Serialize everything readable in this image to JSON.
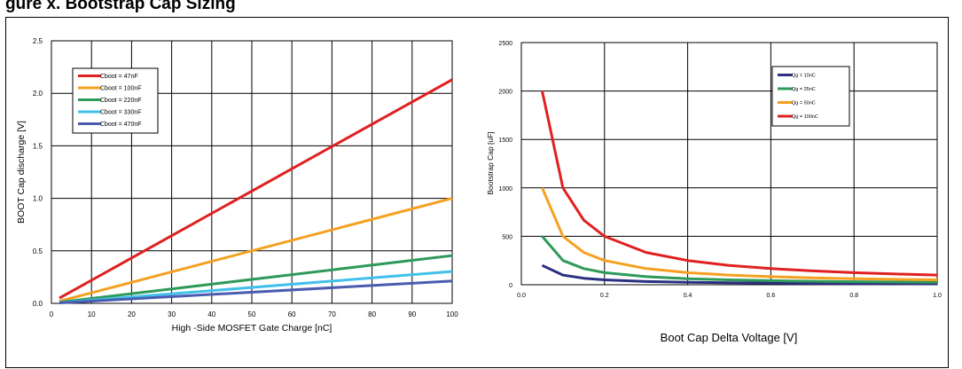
{
  "page": {
    "heading": "gure x. Bootstrap Cap Sizing"
  },
  "chart_data": [
    {
      "type": "line",
      "xlabel": "High -Side MOSFET Gate Charge [nC]",
      "ylabel": "BOOT Cap discharge [V]",
      "xlim": [
        0,
        100
      ],
      "ylim": [
        0,
        2.5
      ],
      "xticks": [
        0,
        10,
        20,
        30,
        40,
        50,
        60,
        70,
        80,
        90,
        100
      ],
      "yticks": [
        0.0,
        0.5,
        1.0,
        1.5,
        2.0,
        2.5
      ],
      "ytick_labels": [
        "0.0",
        "0.5",
        "1.0",
        "1.5",
        "2.0",
        "2.5"
      ],
      "grid": true,
      "legend_position": "top-left",
      "series": [
        {
          "name": "Cboot = 47nF",
          "color": "#e02020",
          "x": [
            2,
            100
          ],
          "y": [
            0.05,
            2.13
          ]
        },
        {
          "name": "Cboot = 100nF",
          "color": "#f5a020",
          "x": [
            2,
            100
          ],
          "y": [
            0.02,
            1.0
          ]
        },
        {
          "name": "Cboot = 220nF",
          "color": "#2e9a5a",
          "x": [
            2,
            100
          ],
          "y": [
            0.01,
            0.455
          ]
        },
        {
          "name": "Cboot = 330nF",
          "color": "#40c0ea",
          "x": [
            2,
            100
          ],
          "y": [
            0.006,
            0.303
          ]
        },
        {
          "name": "Cboot = 470nF",
          "color": "#4a5cb0",
          "x": [
            2,
            100
          ],
          "y": [
            0.004,
            0.213
          ]
        }
      ]
    },
    {
      "type": "line",
      "xlabel": "Boot Cap Delta Voltage [V]",
      "ylabel": "Bootstrap Cap [uF]",
      "xlim": [
        0,
        1.0
      ],
      "ylim": [
        0,
        2500
      ],
      "xticks": [
        0.0,
        0.2,
        0.4,
        0.6,
        0.8,
        1.0
      ],
      "xtick_labels": [
        "0.0",
        "0.2",
        "0.4",
        "0.6",
        "0.8",
        "1.0"
      ],
      "yticks": [
        0,
        500,
        1000,
        1500,
        2000,
        2500
      ],
      "grid": true,
      "legend_position": "top-right",
      "series": [
        {
          "name": "Qg = 10nC",
          "color": "#2a2f80",
          "x": [
            0.05,
            0.1,
            0.15,
            0.2,
            0.3,
            0.4,
            0.5,
            0.6,
            0.7,
            0.8,
            0.9,
            1.0
          ],
          "y": [
            200,
            100,
            67,
            50,
            33,
            25,
            20,
            17,
            14,
            12,
            11,
            10
          ]
        },
        {
          "name": "Qg = 25nC",
          "color": "#2e9a5a",
          "x": [
            0.05,
            0.1,
            0.15,
            0.2,
            0.3,
            0.4,
            0.5,
            0.6,
            0.7,
            0.8,
            0.9,
            1.0
          ],
          "y": [
            500,
            250,
            167,
            125,
            83,
            62,
            50,
            42,
            36,
            31,
            28,
            25
          ]
        },
        {
          "name": "Qg = 50nC",
          "color": "#f5a020",
          "x": [
            0.05,
            0.1,
            0.15,
            0.2,
            0.3,
            0.4,
            0.5,
            0.6,
            0.7,
            0.8,
            0.9,
            1.0
          ],
          "y": [
            1000,
            500,
            333,
            250,
            167,
            125,
            100,
            83,
            71,
            62,
            56,
            50
          ]
        },
        {
          "name": "Qg = 100nC",
          "color": "#e02020",
          "x": [
            0.05,
            0.1,
            0.15,
            0.2,
            0.3,
            0.4,
            0.5,
            0.6,
            0.7,
            0.8,
            0.9,
            1.0
          ],
          "y": [
            2000,
            1000,
            667,
            500,
            333,
            250,
            200,
            167,
            143,
            125,
            111,
            100
          ]
        }
      ]
    }
  ]
}
